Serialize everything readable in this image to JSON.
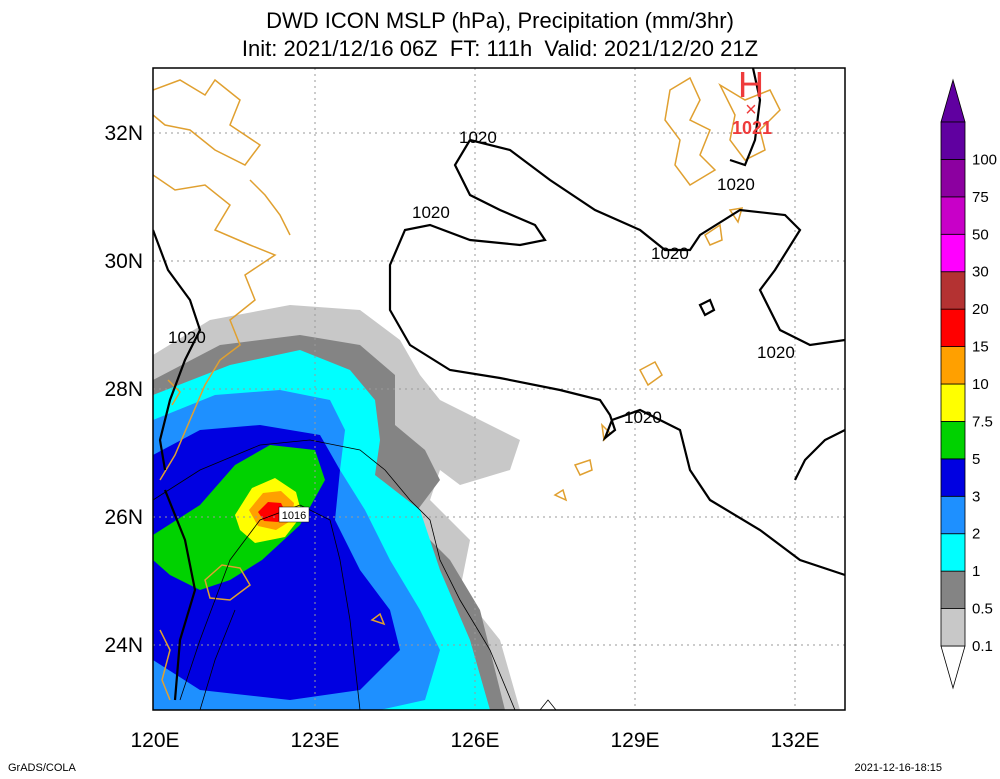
{
  "header": {
    "title": "DWD ICON MSLP (hPa), Precipitation (mm/3hr)",
    "subtitle": "Init: 2021/12/16 06Z  FT: 111h  Valid: 2021/12/20 21Z"
  },
  "footer": {
    "left": "GrADS/COLA",
    "right": "2021-12-16-18:15"
  },
  "map": {
    "lon_ticks": [
      {
        "value": 120,
        "label": "120E"
      },
      {
        "value": 123,
        "label": "123E"
      },
      {
        "value": 126,
        "label": "126E"
      },
      {
        "value": 129,
        "label": "129E"
      },
      {
        "value": 132,
        "label": "132E"
      }
    ],
    "lat_ticks": [
      {
        "value": 24,
        "label": "24N"
      },
      {
        "value": 26,
        "label": "26N"
      },
      {
        "value": 28,
        "label": "28N"
      },
      {
        "value": 30,
        "label": "30N"
      },
      {
        "value": 32,
        "label": "32N"
      }
    ],
    "lon_range": [
      120,
      133
    ],
    "lat_range": [
      23,
      33
    ],
    "grid": "dotted",
    "high_center": {
      "symbol": "H",
      "marker": "×",
      "value": "1021",
      "color": "#ee3b3b"
    },
    "low_center_label": "1016",
    "isobar_labels": [
      "1020",
      "1020",
      "1020",
      "1020",
      "1020",
      "1020",
      "1020"
    ]
  },
  "colorbar": {
    "levels": [
      {
        "label": "0.1",
        "color": "#ffffff"
      },
      {
        "label": "0.5",
        "color": "#c8c8c8"
      },
      {
        "label": "1",
        "color": "#848484"
      },
      {
        "label": "2",
        "color": "#00ffff"
      },
      {
        "label": "3",
        "color": "#1e90ff"
      },
      {
        "label": "5",
        "color": "#0000e1"
      },
      {
        "label": "7.5",
        "color": "#00d200"
      },
      {
        "label": "10",
        "color": "#ffff00"
      },
      {
        "label": "15",
        "color": "#ffa000"
      },
      {
        "label": "20",
        "color": "#ff0000"
      },
      {
        "label": "30",
        "color": "#b43232"
      },
      {
        "label": "50",
        "color": "#ff00ff"
      },
      {
        "label": "75",
        "color": "#c800c8"
      },
      {
        "label": "100",
        "color": "#8c00a0"
      }
    ],
    "top_color": "#6000a0"
  }
}
